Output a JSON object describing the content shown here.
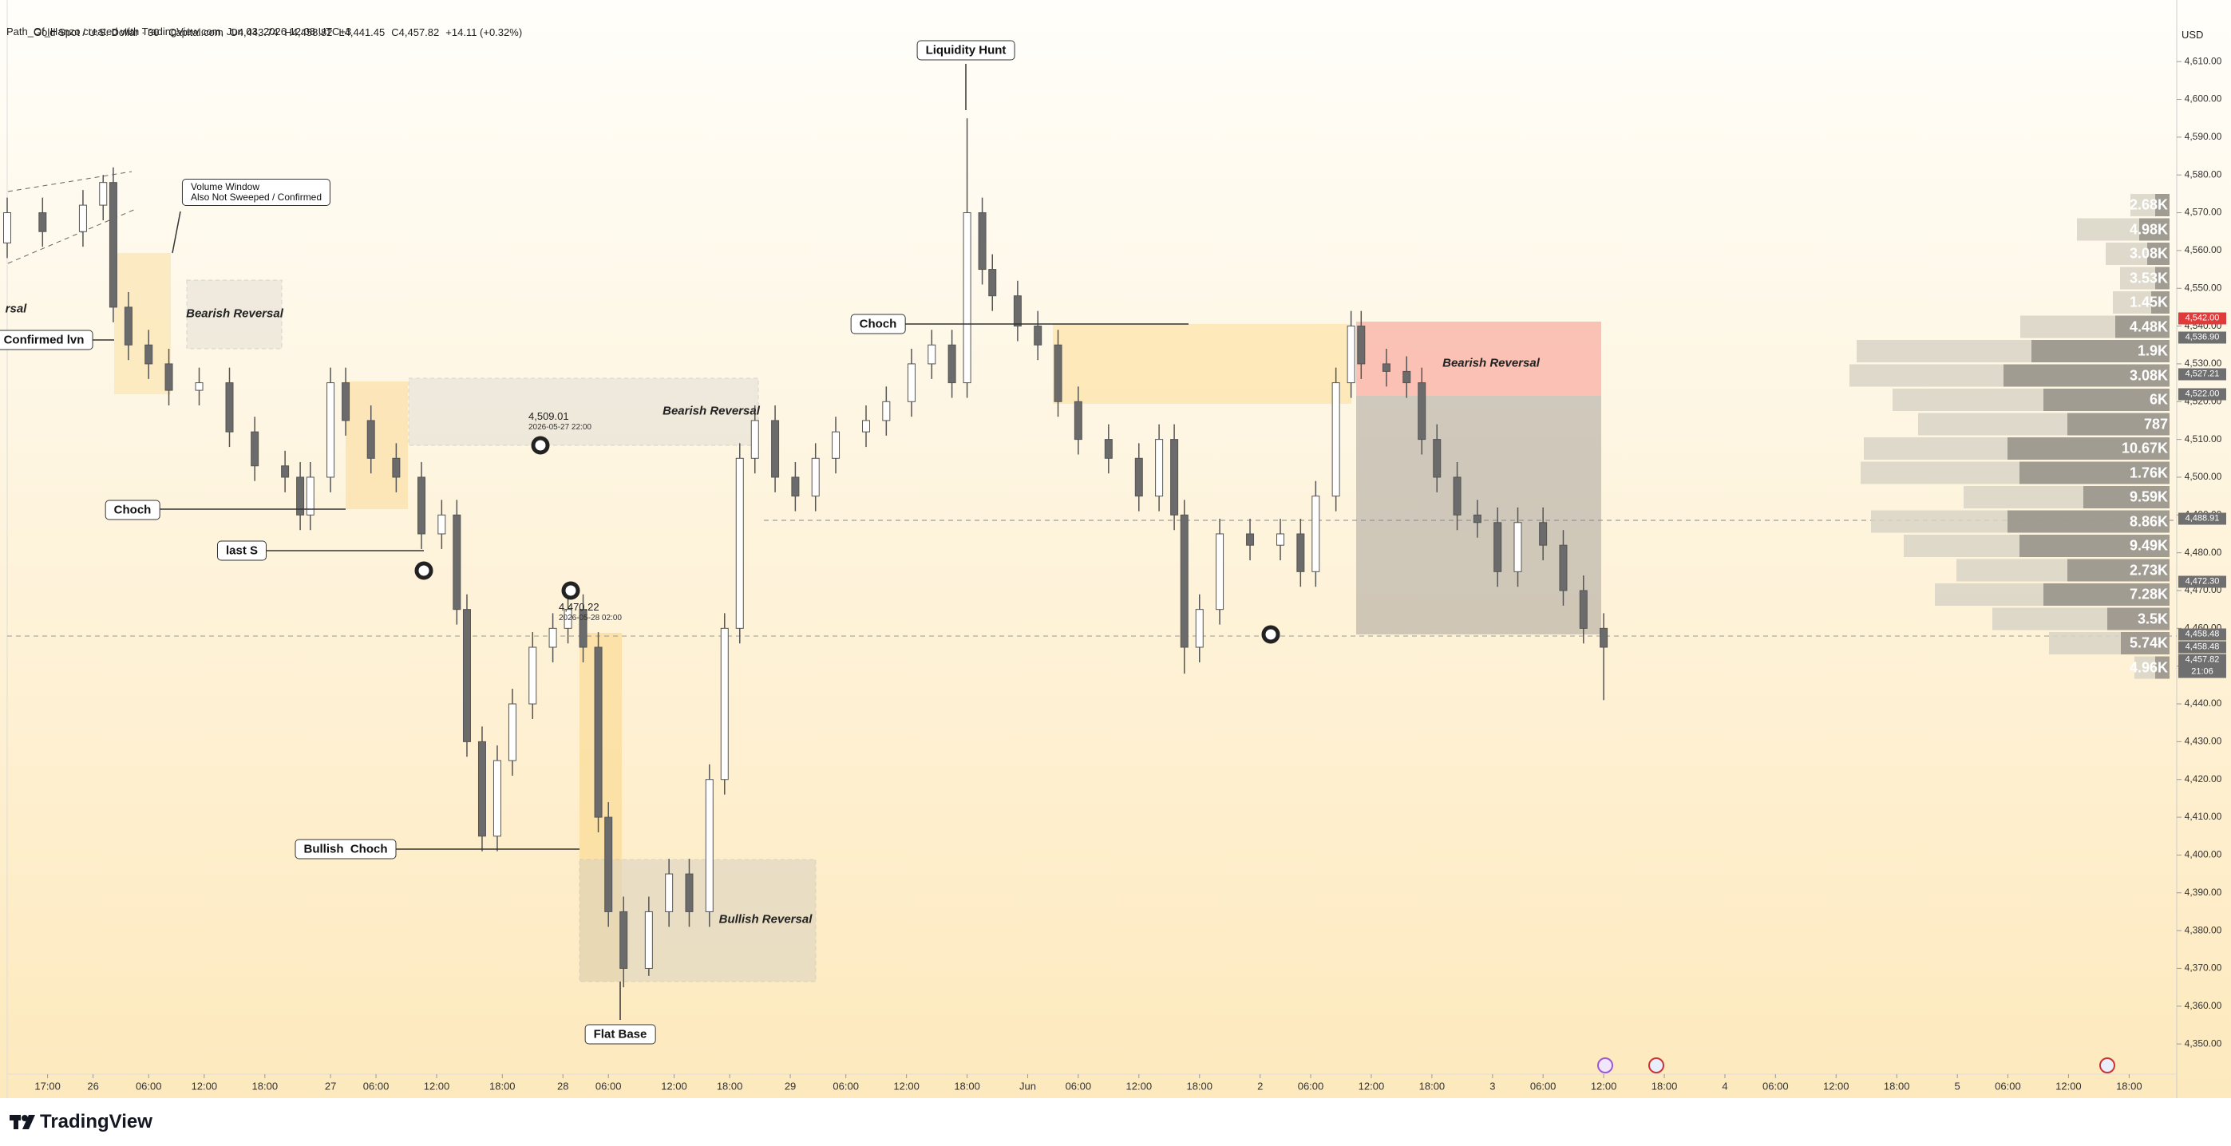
{
  "header": {
    "credit": "Path_Of_Hanzo created with TradingView.com, Jun 03, 2026 12:08 UTC+3",
    "symbol": "Gold Spot / U.S. Dollar · 30 · Capital.com",
    "open": "O4,443.74",
    "high": "H4,458.82",
    "low": "L4,441.45",
    "close": "C4,457.82",
    "change": "+14.11 (+0.32%)",
    "currency": "USD"
  },
  "chart_data": {
    "type": "candlestick",
    "x": [
      0,
      7,
      15,
      19,
      21,
      24,
      28,
      32,
      38,
      44,
      49,
      55,
      58,
      60,
      64,
      67,
      72,
      77,
      82,
      86,
      89,
      91,
      94,
      97,
      100,
      104,
      108,
      111,
      114,
      117,
      119,
      122,
      127,
      131,
      135,
      139,
      142,
      145,
      148,
      152,
      156,
      160,
      164,
      170,
      174,
      179,
      183,
      187,
      190,
      193,
      195,
      200,
      204,
      208,
      212,
      218,
      224,
      228,
      231,
      233,
      236,
      240,
      246,
      252,
      256,
      259,
      263,
      266,
      268,
      273,
      277,
      280,
      283,
      287,
      291,
      295,
      299,
      304,
      308,
      312,
      316
    ],
    "open": [
      4562,
      4570,
      4565,
      4572,
      4578,
      4545,
      4535,
      4530,
      4523,
      4525,
      4512,
      4503,
      4500,
      4490,
      4500,
      4525,
      4515,
      4505,
      4500,
      4485,
      4490,
      4465,
      4430,
      4405,
      4425,
      4440,
      4455,
      4460,
      4465,
      4455,
      4410,
      4385,
      4370,
      4385,
      4395,
      4385,
      4420,
      4460,
      4505,
      4515,
      4500,
      4495,
      4505,
      4512,
      4515,
      4520,
      4530,
      4535,
      4525,
      4570,
      4555,
      4548,
      4540,
      4535,
      4520,
      4510,
      4505,
      4495,
      4510,
      4490,
      4455,
      4465,
      4485,
      4482,
      4485,
      4475,
      4495,
      4525,
      4540,
      4530,
      4528,
      4525,
      4510,
      4500,
      4490,
      4488,
      4475,
      4488,
      4482,
      4470,
      4460
    ],
    "high": [
      4574,
      4574,
      4576,
      4580,
      4582,
      4549,
      4539,
      4534,
      4529,
      4529,
      4516,
      4507,
      4504,
      4504,
      4529,
      4529,
      4519,
      4509,
      4504,
      4494,
      4494,
      4469,
      4434,
      4429,
      4444,
      4459,
      4464,
      4469,
      4469,
      4459,
      4414,
      4389,
      4389,
      4399,
      4399,
      4424,
      4464,
      4509,
      4519,
      4519,
      4504,
      4509,
      4516,
      4519,
      4524,
      4534,
      4539,
      4539,
      4595,
      4574,
      4559,
      4552,
      4544,
      4539,
      4524,
      4514,
      4509,
      4514,
      4514,
      4494,
      4469,
      4489,
      4489,
      4489,
      4489,
      4499,
      4529,
      4544,
      4544,
      4534,
      4532,
      4529,
      4514,
      4504,
      4494,
      4492,
      4492,
      4492,
      4486,
      4474,
      4464
    ],
    "low": [
      4558,
      4561,
      4561,
      4568,
      4541,
      4531,
      4526,
      4519,
      4519,
      4508,
      4499,
      4496,
      4486,
      4486,
      4496,
      4511,
      4501,
      4496,
      4481,
      4481,
      4461,
      4426,
      4401,
      4401,
      4421,
      4436,
      4451,
      4456,
      4451,
      4406,
      4381,
      4365,
      4368,
      4381,
      4381,
      4381,
      4416,
      4456,
      4501,
      4496,
      4491,
      4491,
      4501,
      4508,
      4511,
      4516,
      4526,
      4521,
      4521,
      4551,
      4544,
      4536,
      4531,
      4516,
      4506,
      4501,
      4491,
      4491,
      4486,
      4448,
      4451,
      4461,
      4478,
      4478,
      4471,
      4471,
      4491,
      4521,
      4526,
      4524,
      4521,
      4506,
      4496,
      4486,
      4484,
      4471,
      4471,
      4478,
      4466,
      4456,
      4441
    ],
    "close": [
      4570,
      4565,
      4572,
      4578,
      4545,
      4535,
      4530,
      4523,
      4525,
      4512,
      4503,
      4500,
      4490,
      4500,
      4525,
      4515,
      4505,
      4500,
      4485,
      4490,
      4465,
      4430,
      4405,
      4425,
      4440,
      4455,
      4460,
      4465,
      4455,
      4410,
      4385,
      4370,
      4385,
      4395,
      4385,
      4420,
      4460,
      4505,
      4515,
      4500,
      4495,
      4505,
      4512,
      4515,
      4520,
      4530,
      4535,
      4525,
      4570,
      4555,
      4548,
      4540,
      4535,
      4520,
      4510,
      4505,
      4495,
      4510,
      4490,
      4455,
      4465,
      4485,
      4482,
      4485,
      4475,
      4495,
      4525,
      4540,
      4530,
      4528,
      4525,
      4510,
      4500,
      4490,
      4488,
      4475,
      4488,
      4482,
      4470,
      4460,
      4455
    ],
    "up_color": "#ffffff",
    "down_color": "#6b6b6b",
    "wick_color": "#555555",
    "xlim": [
      0,
      428
    ],
    "ylim": [
      4342.0,
      4626.3
    ],
    "xticks": [
      {
        "value": 8,
        "label": "17:00"
      },
      {
        "value": 17,
        "label": "26"
      },
      {
        "value": 28,
        "label": "06:00"
      },
      {
        "value": 39,
        "label": "12:00"
      },
      {
        "value": 51,
        "label": "18:00"
      },
      {
        "value": 64,
        "label": "27"
      },
      {
        "value": 73,
        "label": "06:00"
      },
      {
        "value": 85,
        "label": "12:00"
      },
      {
        "value": 98,
        "label": "18:00"
      },
      {
        "value": 110,
        "label": "28"
      },
      {
        "value": 119,
        "label": "06:00"
      },
      {
        "value": 132,
        "label": "12:00"
      },
      {
        "value": 143,
        "label": "18:00"
      },
      {
        "value": 155,
        "label": "29"
      },
      {
        "value": 166,
        "label": "06:00"
      },
      {
        "value": 178,
        "label": "12:00"
      },
      {
        "value": 190,
        "label": "18:00"
      },
      {
        "value": 202,
        "label": "Jun"
      },
      {
        "value": 212,
        "label": "06:00"
      },
      {
        "value": 224,
        "label": "12:00"
      },
      {
        "value": 236,
        "label": "18:00"
      },
      {
        "value": 248,
        "label": "2"
      },
      {
        "value": 258,
        "label": "06:00"
      },
      {
        "value": 270,
        "label": "12:00"
      },
      {
        "value": 282,
        "label": "18:00"
      },
      {
        "value": 294,
        "label": "3"
      },
      {
        "value": 304,
        "label": "06:00"
      },
      {
        "value": 316,
        "label": "12:00"
      },
      {
        "value": 328,
        "label": "18:00"
      },
      {
        "value": 340,
        "label": "4"
      },
      {
        "value": 350,
        "label": "06:00"
      },
      {
        "value": 362,
        "label": "12:00"
      },
      {
        "value": 374,
        "label": "18:00"
      },
      {
        "value": 386,
        "label": "5"
      },
      {
        "value": 396,
        "label": "06:00"
      },
      {
        "value": 408,
        "label": "12:00"
      },
      {
        "value": 420,
        "label": "18:00"
      }
    ],
    "yticks": [
      {
        "value": 4610,
        "label": "4,610.00"
      },
      {
        "value": 4600,
        "label": "4,600.00"
      },
      {
        "value": 4590,
        "label": "4,590.00"
      },
      {
        "value": 4580,
        "label": "4,580.00"
      },
      {
        "value": 4570,
        "label": "4,570.00"
      },
      {
        "value": 4560,
        "label": "4,560.00"
      },
      {
        "value": 4550,
        "label": "4,550.00"
      },
      {
        "value": 4540,
        "label": "4,540.00"
      },
      {
        "value": 4530,
        "label": "4,530.00"
      },
      {
        "value": 4520,
        "label": "4,520.00"
      },
      {
        "value": 4510,
        "label": "4,510.00"
      },
      {
        "value": 4500,
        "label": "4,500.00"
      },
      {
        "value": 4490,
        "label": "4,490.00"
      },
      {
        "value": 4480,
        "label": "4,480.00"
      },
      {
        "value": 4470,
        "label": "4,470.00"
      },
      {
        "value": 4460,
        "label": "4,460.00"
      },
      {
        "value": 4450,
        "label": "4,450.00"
      },
      {
        "value": 4440,
        "label": "4,440.00"
      },
      {
        "value": 4430,
        "label": "4,430.00"
      },
      {
        "value": 4420,
        "label": "4,420.00"
      },
      {
        "value": 4410,
        "label": "4,410.00"
      },
      {
        "value": 4400,
        "label": "4,400.00"
      },
      {
        "value": 4390,
        "label": "4,390.00"
      },
      {
        "value": 4380,
        "label": "4,380.00"
      },
      {
        "value": 4370,
        "label": "4,370.00"
      },
      {
        "value": 4360,
        "label": "4,360.00"
      },
      {
        "value": 4350,
        "label": "4,350.00"
      }
    ],
    "price_tags": [
      {
        "value": 4542.0,
        "label": "4,542.00"
      },
      {
        "value": 4536.9,
        "label": "4,536.90"
      },
      {
        "value": 4527.21,
        "label": "4,527.21"
      },
      {
        "value": 4522.0,
        "label": "4,522.00"
      },
      {
        "value": 4488.91,
        "label": "4,488.91"
      },
      {
        "value": 4472.3,
        "label": "4,472.30"
      },
      {
        "value": 4458.48,
        "label": "4,458.48"
      },
      {
        "value": 4458.48,
        "label": "4,458.48"
      },
      {
        "value": 4457.82,
        "label": "4,457.82"
      }
    ],
    "countdown": "21:06"
  },
  "annotations": [
    "Liquidity Hunt",
    "Volume Window\nAlso Not Sweeped / Confirmed",
    "Bearish Reversal",
    "Bearish Reversal",
    "Bearish Reversal",
    "Bullish Reversal",
    "Choch",
    "Choch",
    "last S",
    "Bullish  Choch",
    "Flat Base",
    "Confirmed lvn",
    "rsal"
  ],
  "points": [
    {
      "price": "4,509.01",
      "time": "2026-05-27 22:00"
    },
    {
      "price": "4,470.22",
      "time": "2026-05-28 02:00"
    }
  ],
  "volume_profile": [
    "2.68K",
    "4.98K",
    "3.08K",
    "3.53K",
    "1.45K",
    "4.48K",
    "1.9K",
    "3.08K",
    "6K",
    "787",
    "10.67K",
    "1.76K",
    "9.59K",
    "8.86K",
    "9.49K",
    "2.73K",
    "7.28K",
    "3.5K",
    "5.74K",
    "4.96K"
  ],
  "footer": {
    "brand": "TradingView"
  }
}
